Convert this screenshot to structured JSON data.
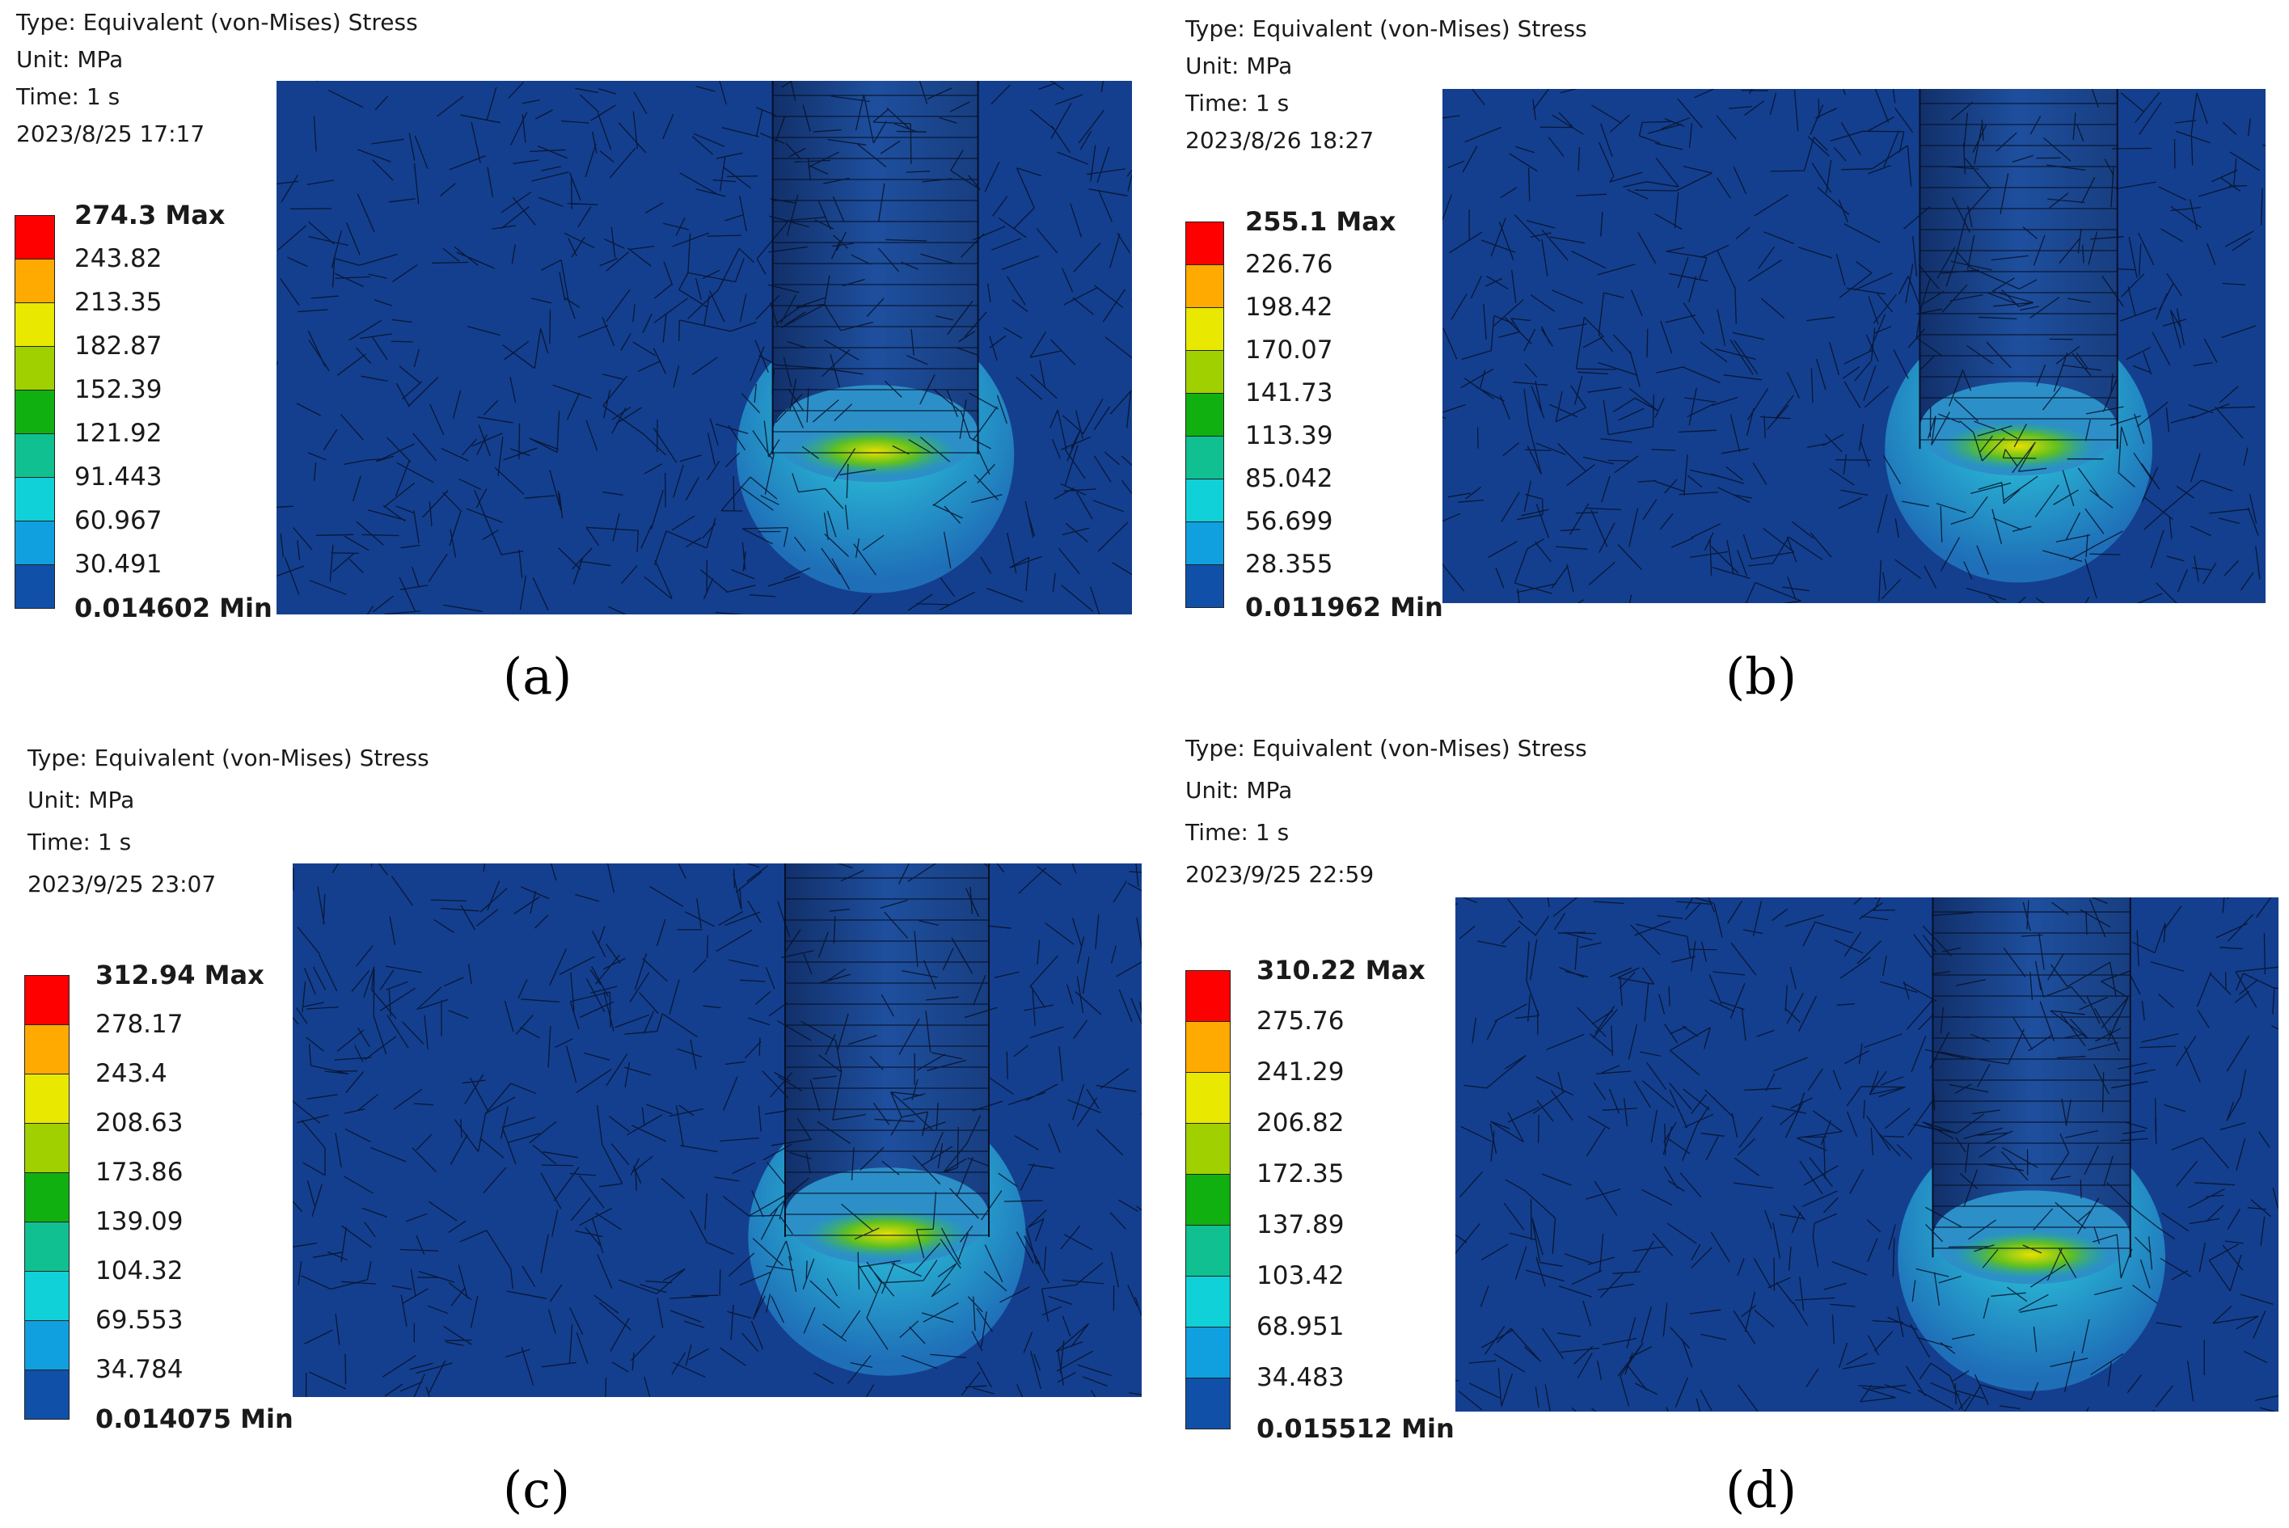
{
  "panels": [
    {
      "id": "a",
      "caption": "(a)",
      "info": [
        "Type: Equivalent (von-Mises) Stress",
        "Unit: MPa",
        "Time: 1 s",
        "2023/8/25 17:17"
      ],
      "legend": [
        "274.3 Max",
        "243.82",
        "213.35",
        "182.87",
        "152.39",
        "121.92",
        "91.443",
        "60.967",
        "30.491",
        "0.014602 Min"
      ]
    },
    {
      "id": "b",
      "caption": "(b)",
      "info": [
        "Type: Equivalent (von-Mises) Stress",
        "Unit: MPa",
        "Time: 1 s",
        "2023/8/26 18:27"
      ],
      "legend": [
        "255.1 Max",
        "226.76",
        "198.42",
        "170.07",
        "141.73",
        "113.39",
        "85.042",
        "56.699",
        "28.355",
        "0.011962 Min"
      ]
    },
    {
      "id": "c",
      "caption": "(c)",
      "info": [
        "Type: Equivalent (von-Mises) Stress",
        "Unit: MPa",
        "Time: 1 s",
        "2023/9/25 23:07"
      ],
      "legend": [
        "312.94 Max",
        "278.17",
        "243.4",
        "208.63",
        "173.86",
        "139.09",
        "104.32",
        "69.553",
        "34.784",
        "0.014075 Min"
      ]
    },
    {
      "id": "d",
      "caption": "(d)",
      "info": [
        "Type: Equivalent (von-Mises) Stress",
        "Unit: MPa",
        "Time: 1 s",
        "2023/9/25 22:59"
      ],
      "legend": [
        "310.22 Max",
        "275.76",
        "241.29",
        "206.82",
        "172.35",
        "137.89",
        "103.42",
        "68.951",
        "34.483",
        "0.015512 Min"
      ]
    }
  ],
  "legend_colors": [
    "#ff0000",
    "#ffaa00",
    "#e8e800",
    "#a0d000",
    "#10b010",
    "#10c090",
    "#10d0d8",
    "#10a0e0",
    "#1050a8"
  ]
}
